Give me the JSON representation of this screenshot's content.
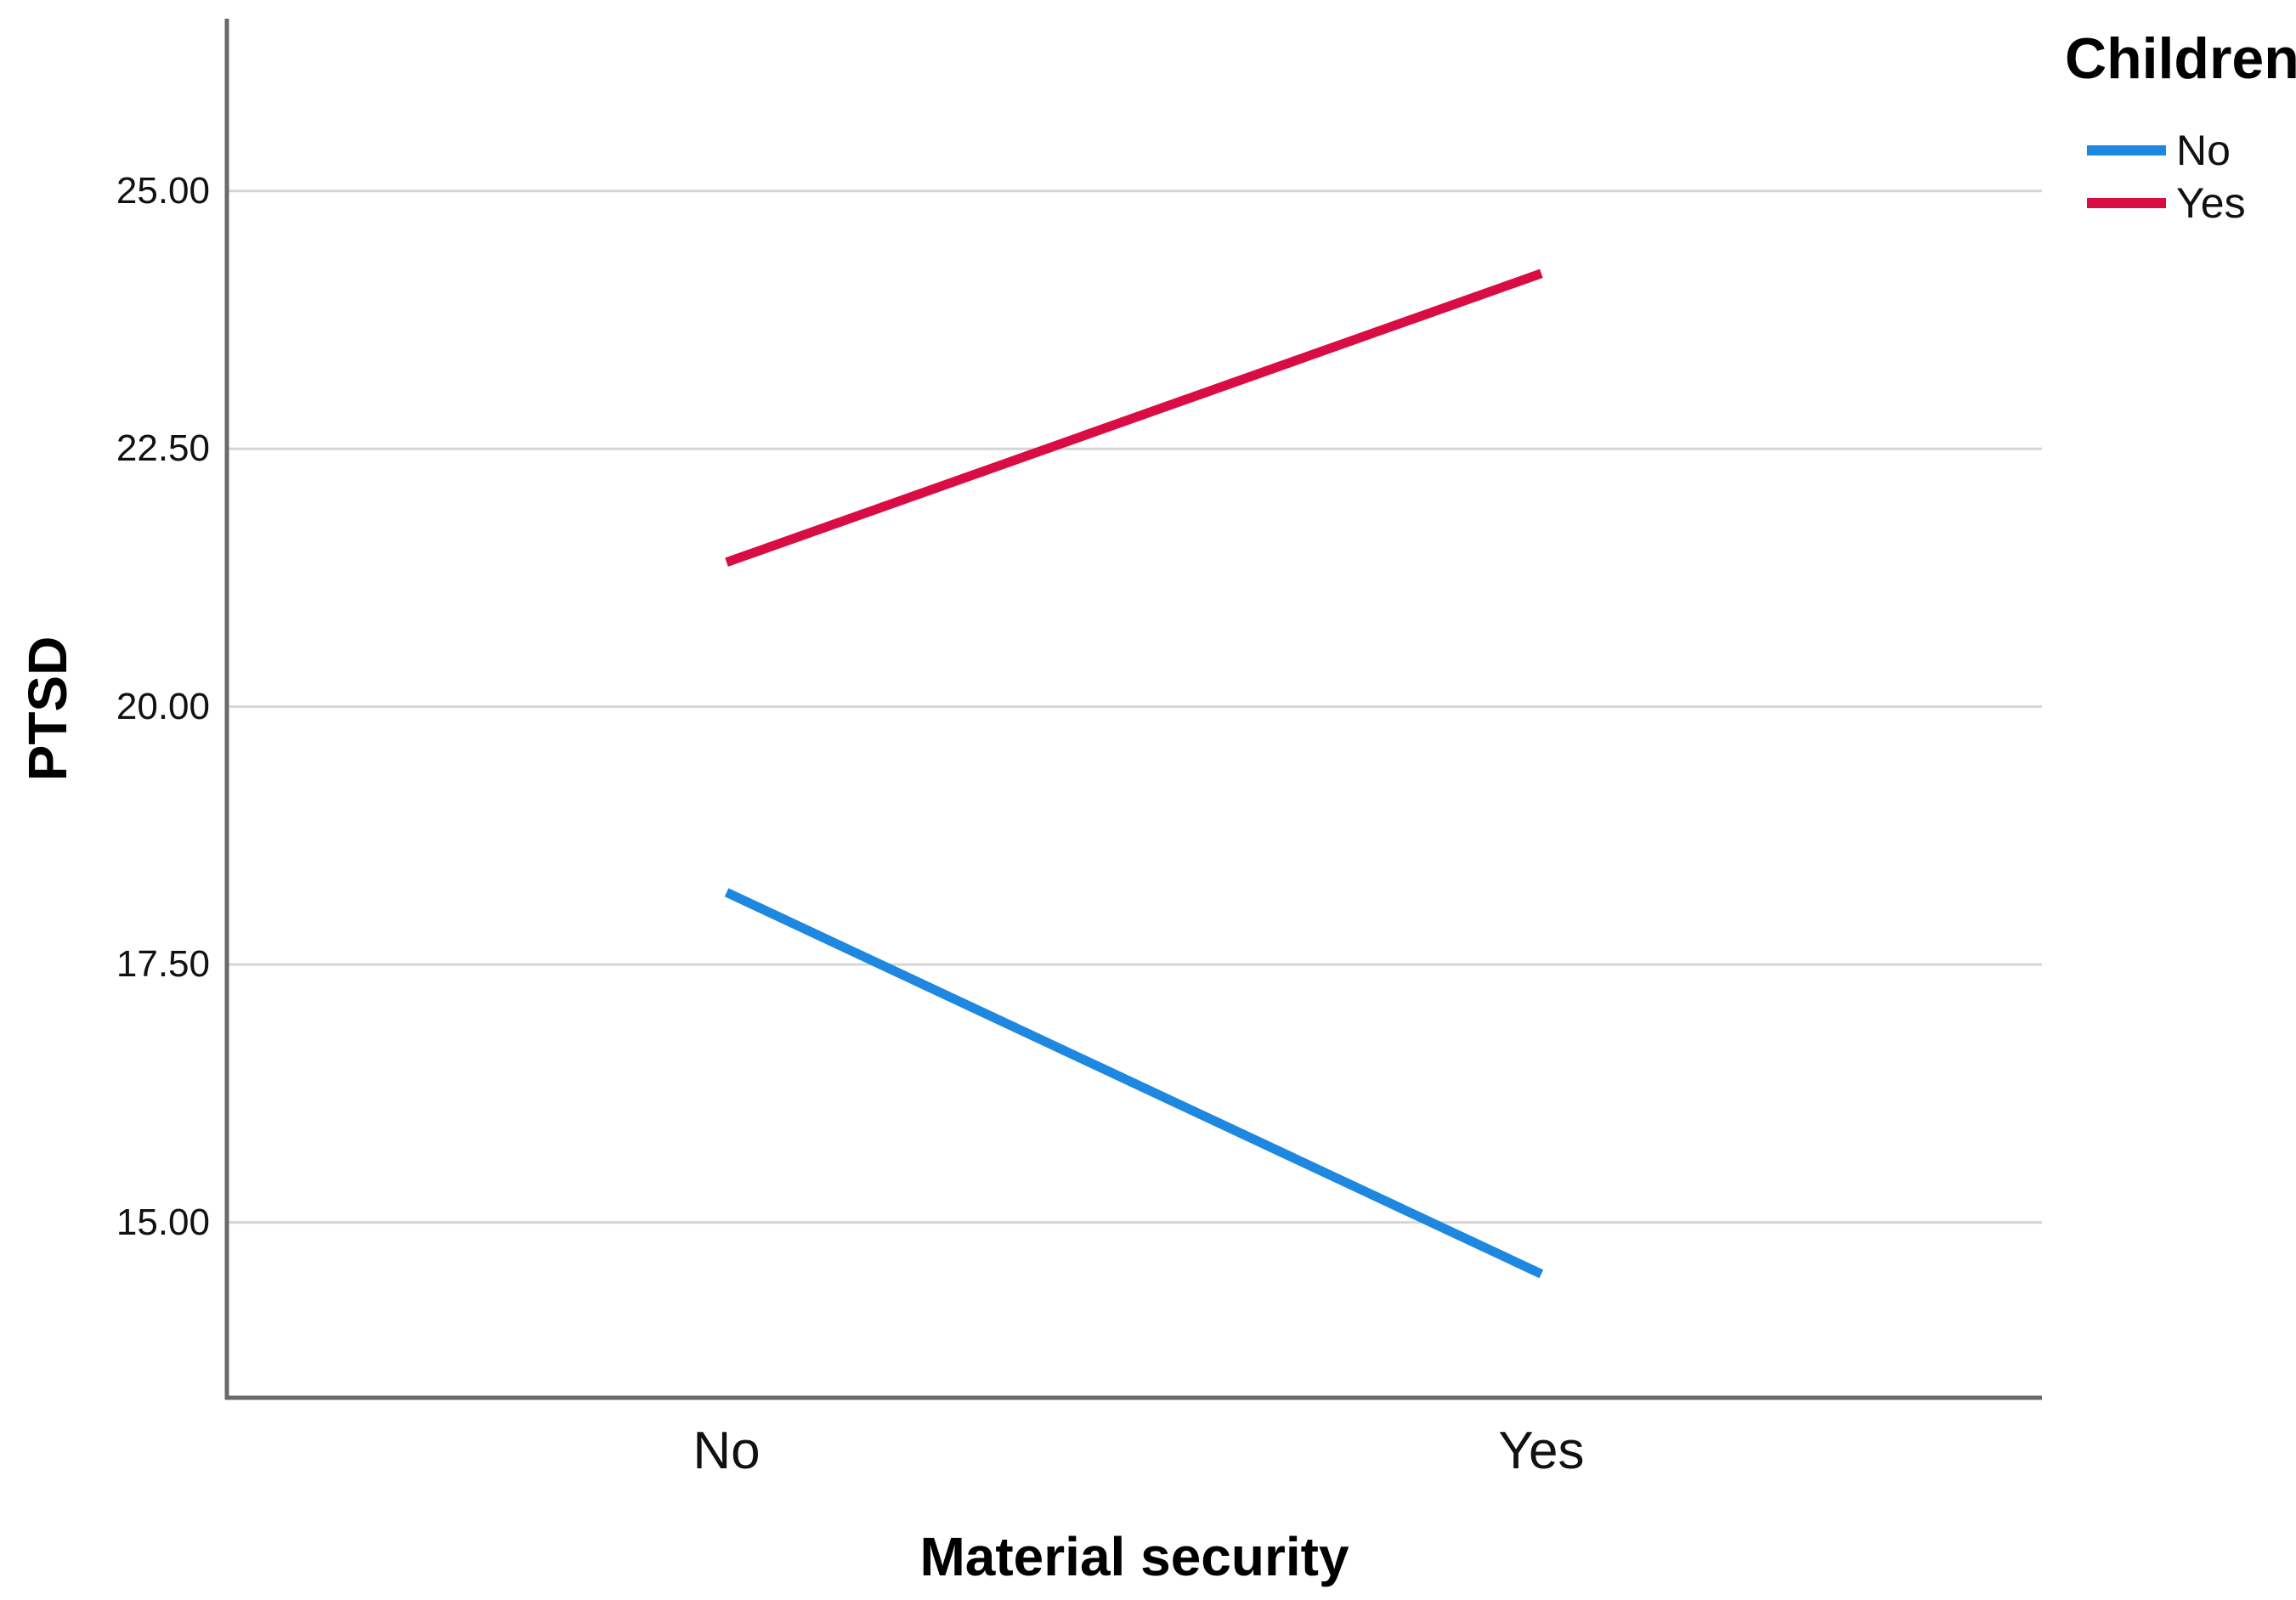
{
  "chart_data": {
    "type": "line",
    "title": "",
    "xlabel": "Material security",
    "ylabel": "PTSD",
    "categories": [
      "No",
      "Yes"
    ],
    "series": [
      {
        "name": "No",
        "color": "#1E87E0",
        "values": [
          18.2,
          14.5
        ]
      },
      {
        "name": "Yes",
        "color": "#D90D44",
        "values": [
          21.4,
          24.2
        ]
      }
    ],
    "yticks": [
      15.0,
      17.5,
      20.0,
      22.5,
      25.0
    ],
    "ytick_labels": [
      "15.00",
      "17.50",
      "20.00",
      "22.50",
      "25.00"
    ],
    "ylim": [
      13.3,
      26.67
    ],
    "grid": "horizontal",
    "legend": {
      "title": "Children",
      "position": "top-right",
      "items": [
        {
          "label": "No",
          "color": "#1E87E0"
        },
        {
          "label": "Yes",
          "color": "#D90D44"
        }
      ]
    },
    "colors": {
      "background": "#FFFFFF",
      "gridline": "#D6D6D6",
      "axis": "#6A6A6A",
      "text": "#000000"
    }
  }
}
